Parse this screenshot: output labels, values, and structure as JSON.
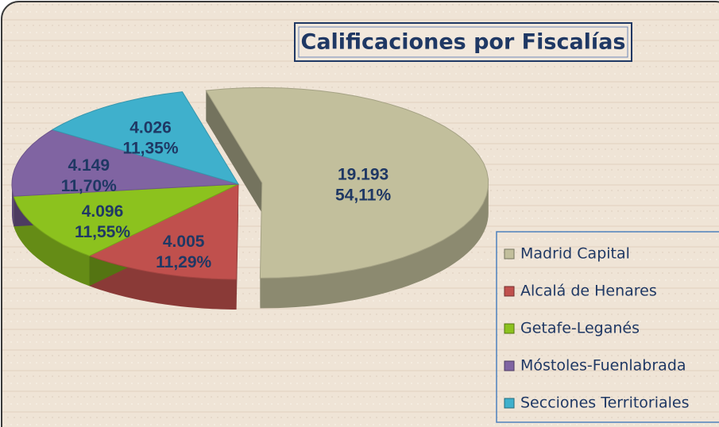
{
  "chart_data": {
    "type": "pie",
    "title": "Calificaciones por Fiscalías",
    "categories": [
      "Madrid Capital",
      "Alcalá de Henares",
      "Getafe-Leganés",
      "Móstoles-Fuenlabrada",
      "Secciones Territoriales"
    ],
    "values": [
      19193,
      4005,
      4096,
      4149,
      4026
    ],
    "value_labels": [
      "19.193",
      "4.005",
      "4.096",
      "4.149",
      "4.026"
    ],
    "percents": [
      54.11,
      11.29,
      11.55,
      11.7,
      11.35
    ],
    "percent_labels": [
      "54,11%",
      "11,29%",
      "11,55%",
      "11,70%",
      "11,35%"
    ],
    "colors": [
      "#c2bf9c",
      "#c0504d",
      "#8cc21e",
      "#8064a2",
      "#3fb0cc"
    ],
    "exploded": [
      true,
      false,
      false,
      false,
      false
    ],
    "legend": "right"
  }
}
